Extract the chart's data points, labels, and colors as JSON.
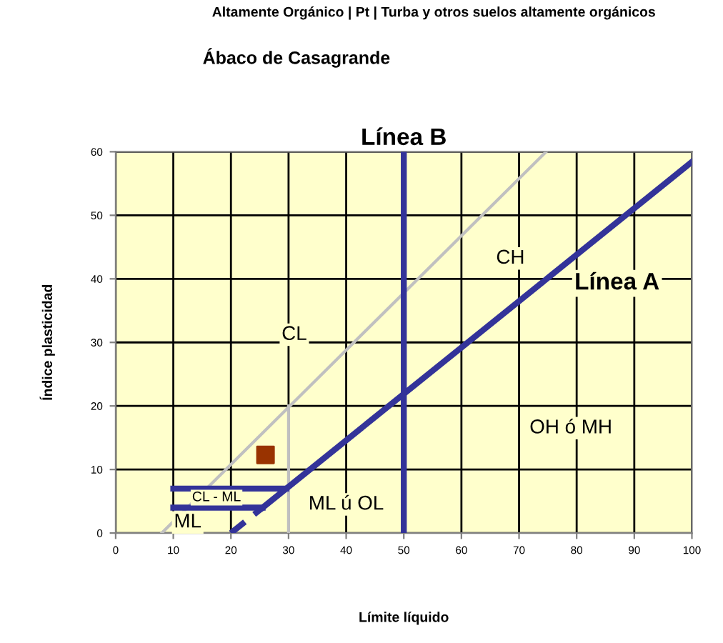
{
  "chart_data": {
    "type": "line",
    "title": "Ábaco de Casagrande",
    "xlabel": "Límite líquido",
    "ylabel": "Índice plasticidad",
    "xlim": [
      0,
      100
    ],
    "ylim": [
      0,
      60
    ],
    "xticks": [
      0,
      10,
      20,
      30,
      40,
      50,
      60,
      70,
      80,
      90,
      100
    ],
    "yticks": [
      0,
      10,
      20,
      30,
      40,
      50,
      60
    ],
    "grid": true,
    "series": [
      {
        "color": "#c0c0c0",
        "x": [
          8,
          74.7
        ],
        "values": [
          0,
          60
        ]
      },
      {
        "color": "#c0c0c0",
        "x": [
          30,
          30
        ],
        "values": [
          0,
          20
        ]
      },
      {
        "color": "#333399",
        "x": [
          25.5,
          100
        ],
        "values": [
          4,
          58.4
        ]
      },
      {
        "color": "#333399",
        "line_style": "dashed",
        "x": [
          20,
          25.5
        ],
        "values": [
          0,
          4
        ]
      },
      {
        "color": "#333399",
        "x": [
          50,
          50
        ],
        "values": [
          0,
          60
        ]
      },
      {
        "color": "#333399",
        "x": [
          10,
          29.6
        ],
        "values": [
          7,
          7
        ]
      },
      {
        "color": "#333399",
        "x": [
          10,
          25.5
        ],
        "values": [
          4,
          4
        ]
      },
      {
        "type": "scatter",
        "color": "#993300",
        "marker": "square",
        "x": [
          26
        ],
        "values": [
          12.3
        ]
      }
    ],
    "annotations": [
      "Altamente Orgánico | Pt | Turba y otros suelos altamente orgánicos",
      "Línea B",
      "Línea A",
      "CL",
      "CH",
      "OH ó MH",
      "ML ú OL",
      "CL - ML",
      "ML"
    ]
  }
}
